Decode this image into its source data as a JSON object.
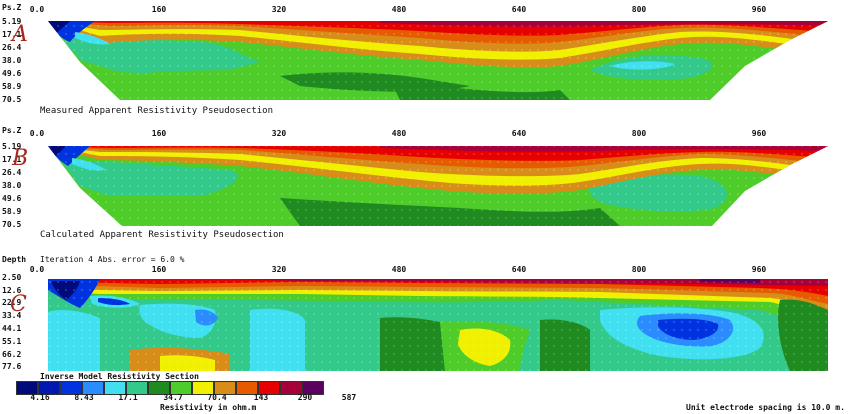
{
  "sections": [
    {
      "id": "measured",
      "letter": "A",
      "corner_label": "Ps.Z",
      "title": "Measured Apparent Resistivity Pseudosection",
      "x_ticks": [
        "0.0",
        "160",
        "320",
        "480",
        "640",
        "800",
        "960"
      ],
      "y_ticks": [
        "5.19",
        "17.1",
        "26.4",
        "38.0",
        "49.6",
        "58.9",
        "70.5"
      ]
    },
    {
      "id": "calculated",
      "letter": "B",
      "corner_label": "Ps.Z",
      "title": "Calculated Apparent Resistivity Pseudosection",
      "x_ticks": [
        "0.0",
        "160",
        "320",
        "480",
        "640",
        "800",
        "960"
      ],
      "y_ticks": [
        "5.19",
        "17.1",
        "26.4",
        "38.0",
        "49.6",
        "58.9",
        "70.5"
      ]
    },
    {
      "id": "inverse",
      "letter": "C",
      "corner_label": "Depth",
      "header_note": "Iteration 4 Abs. error = 6.0 %",
      "title": "Inverse Model Resistivity Section",
      "x_ticks": [
        "0.0",
        "160",
        "320",
        "480",
        "640",
        "800",
        "960"
      ],
      "y_ticks": [
        "2.50",
        "12.6",
        "22.9",
        "33.4",
        "44.1",
        "55.1",
        "66.2",
        "77.6"
      ]
    }
  ],
  "legend": {
    "colors": [
      "#000a7a",
      "#0018b0",
      "#0033e0",
      "#2a8cff",
      "#40e0f0",
      "#33c98a",
      "#1f8a1f",
      "#4dcc2a",
      "#f0f000",
      "#d88d18",
      "#e65a00",
      "#e60000",
      "#a8003a",
      "#5a0060"
    ],
    "values": [
      "4.16",
      "8.43",
      "17.1",
      "34.7",
      "70.4",
      "143",
      "290",
      "587"
    ],
    "unit_label": "Resistivity in ohm.m"
  },
  "footer_note": "Unit electrode spacing is 10.0 m.",
  "palette": {
    "deep_blue": "#000a7a",
    "blue": "#0033e0",
    "cyan": "#40e0f0",
    "teal": "#33c98a",
    "dark_green": "#1f8a1f",
    "green": "#4dcc2a",
    "yellow": "#f0f000",
    "orange": "#d88d18",
    "red_orange": "#e65a00",
    "red": "#e60000",
    "crimson": "#a8003a",
    "purple": "#5a0060"
  }
}
